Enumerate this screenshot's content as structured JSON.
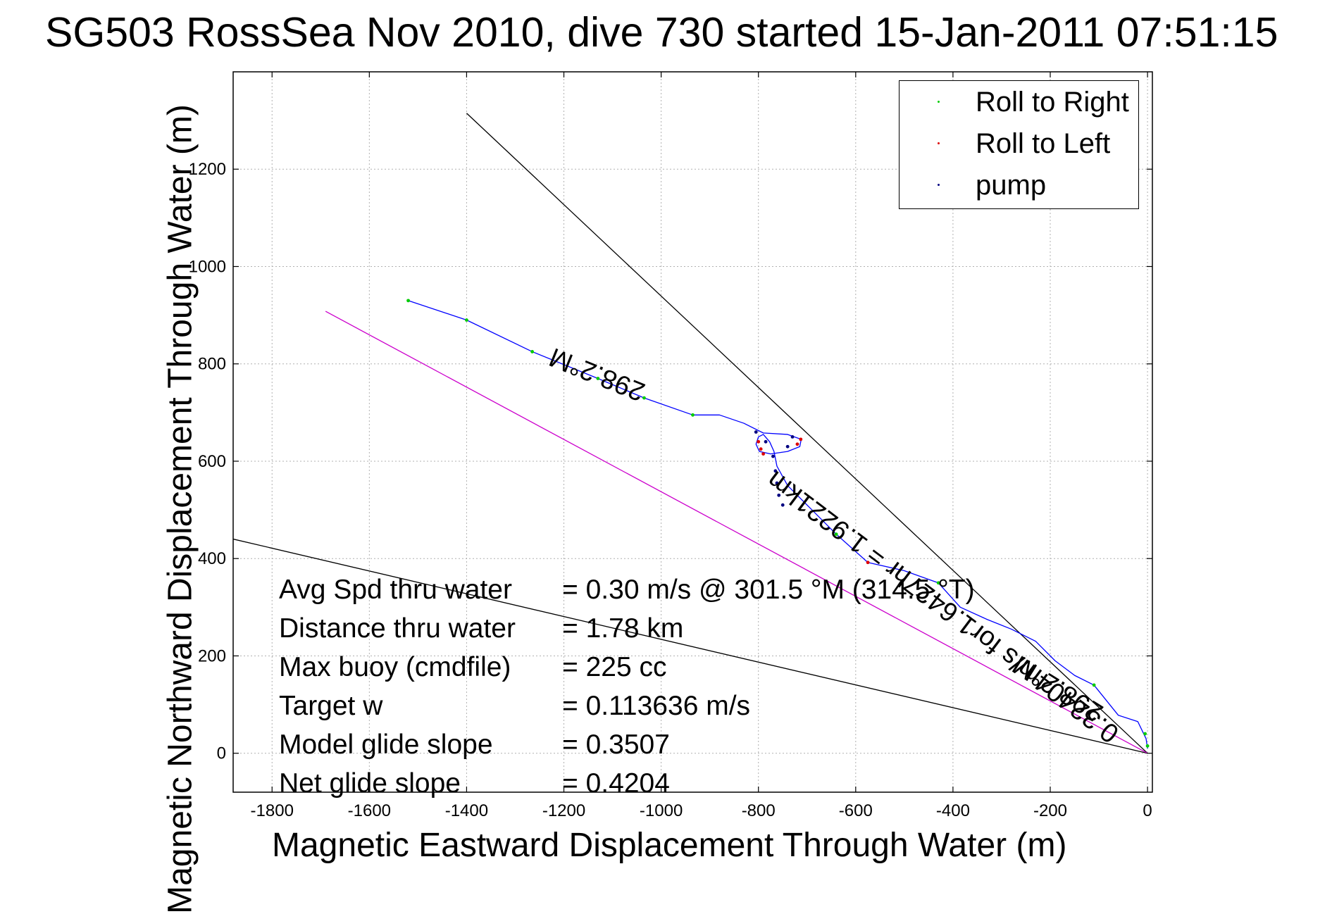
{
  "title": "SG503 RossSea Nov 2010, dive 730 started 15-Jan-2011 07:51:15",
  "chart_data": {
    "type": "line",
    "xlabel": "Magnetic Eastward Displacement Through Water (m)",
    "ylabel": "Magnetic Northward Displacement Through Water (m)",
    "xlim": [
      -1880,
      10
    ],
    "ylim": [
      -80,
      1400
    ],
    "xticks": [
      -1800,
      -1600,
      -1400,
      -1200,
      -1000,
      -800,
      -600,
      -400,
      -200,
      0
    ],
    "yticks": [
      0,
      200,
      400,
      600,
      800,
      1000,
      1200
    ],
    "grid": true,
    "legend_position": "top-right",
    "legend": [
      {
        "label": "Roll to Right",
        "color": "#00cc00"
      },
      {
        "label": "Roll to Left",
        "color": "#dd0000"
      },
      {
        "label": "pump",
        "color": "#000080"
      }
    ],
    "track": {
      "color": "#0000ff",
      "points": [
        [
          0,
          10
        ],
        [
          -3,
          30
        ],
        [
          -20,
          65
        ],
        [
          -60,
          78
        ],
        [
          -110,
          140
        ],
        [
          -150,
          160
        ],
        [
          -190,
          190
        ],
        [
          -230,
          230
        ],
        [
          -280,
          255
        ],
        [
          -330,
          275
        ],
        [
          -385,
          300
        ],
        [
          -430,
          350
        ],
        [
          -500,
          375
        ],
        [
          -575,
          392
        ],
        [
          -640,
          450
        ],
        [
          -690,
          500
        ],
        [
          -740,
          550
        ],
        [
          -762,
          590
        ],
        [
          -768,
          620
        ],
        [
          -777,
          640
        ],
        [
          -790,
          655
        ],
        [
          -800,
          650
        ],
        [
          -805,
          635
        ],
        [
          -798,
          620
        ],
        [
          -775,
          615
        ],
        [
          -740,
          620
        ],
        [
          -715,
          630
        ],
        [
          -712,
          645
        ],
        [
          -740,
          655
        ],
        [
          -790,
          658
        ],
        [
          -830,
          678
        ],
        [
          -880,
          695
        ],
        [
          -935,
          695
        ],
        [
          -1035,
          730
        ],
        [
          -1130,
          770
        ],
        [
          -1265,
          825
        ],
        [
          -1400,
          890
        ],
        [
          -1520,
          930
        ]
      ]
    },
    "markers_right": [
      [
        -1520,
        930
      ],
      [
        -1400,
        890
      ],
      [
        -1265,
        825
      ],
      [
        -1130,
        770
      ],
      [
        -1035,
        730
      ],
      [
        -935,
        695
      ],
      [
        -640,
        450
      ],
      [
        -430,
        350
      ],
      [
        -110,
        140
      ],
      [
        -5,
        40
      ],
      [
        0,
        15
      ]
    ],
    "markers_left": [
      [
        -800,
        640
      ],
      [
        -795,
        625
      ],
      [
        -790,
        615
      ],
      [
        -720,
        635
      ],
      [
        -713,
        645
      ],
      [
        -575,
        392
      ]
    ],
    "markers_pump": [
      [
        -805,
        660
      ],
      [
        -785,
        640
      ],
      [
        -770,
        610
      ],
      [
        -765,
        580
      ],
      [
        -762,
        555
      ],
      [
        -758,
        530
      ],
      [
        -750,
        510
      ],
      [
        -740,
        630
      ],
      [
        -730,
        650
      ]
    ],
    "lines": [
      {
        "color": "#000000",
        "points": [
          [
            0,
            0
          ],
          [
            -1400,
            1315
          ]
        ]
      },
      {
        "color": "#000000",
        "points": [
          [
            0,
            0
          ],
          [
            -1880,
            440
          ]
        ]
      },
      {
        "color": "#cc00cc",
        "points": [
          [
            0,
            0
          ],
          [
            -1690,
            908
          ]
        ]
      }
    ],
    "line_labels": [
      {
        "text": "298.2°M",
        "at": [
          -1125,
          795
        ],
        "angle": 22
      },
      {
        "text": "0.32404m/s for1.6427hr = 1.9221km",
        "at": [
          -410,
          315
        ],
        "angle": 37
      },
      {
        "text": "298.2°M",
        "at": [
          -175,
          148
        ],
        "angle": 32
      }
    ]
  },
  "annotations": [
    {
      "label": "Avg Spd thru water",
      "value": "=  0.30 m/s @ 301.5 °M (314.5 °T)"
    },
    {
      "label": "Distance thru water",
      "value": "=  1.78 km"
    },
    {
      "label": "Max buoy (cmdfile)",
      "value": "= 225 cc"
    },
    {
      "label": "Target w",
      "value": "= 0.113636 m/s"
    },
    {
      "label": "Model glide slope",
      "value": "= 0.3507"
    },
    {
      "label": "Net glide slope",
      "value": "= 0.4204"
    }
  ]
}
